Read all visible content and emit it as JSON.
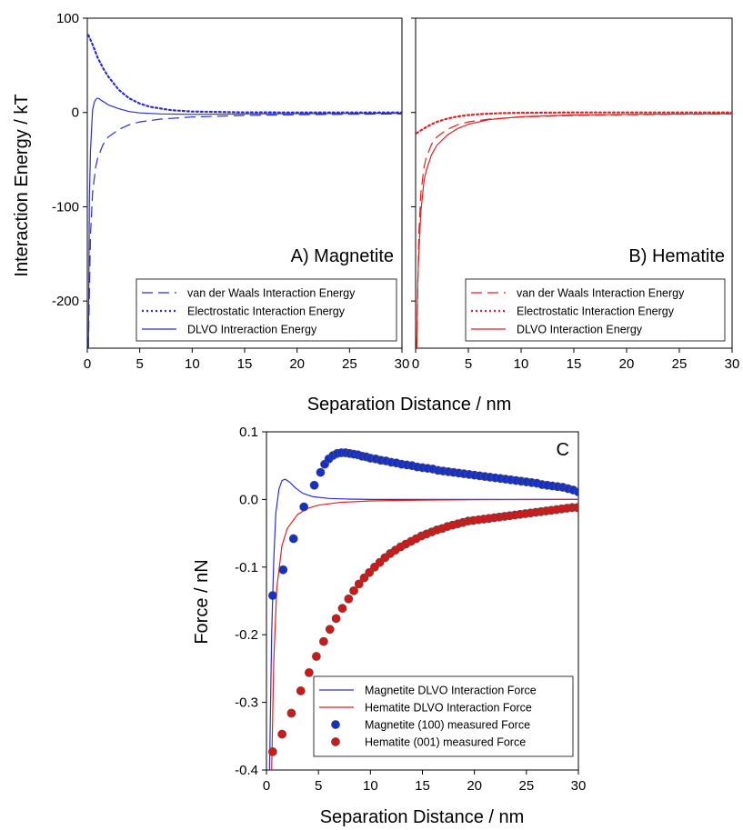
{
  "figure": {
    "top_xlabel": "Separation Distance / nm",
    "top_ylabel": "Interaction Energy / kT",
    "bottom_xlabel": "Separation Distance / nm",
    "bottom_ylabel": "Force / nN"
  },
  "colors": {
    "magnetite": "#2a2fd0",
    "hematite": "#e02222",
    "magnetite_marker": "#1530c8",
    "hematite_marker": "#d01818"
  },
  "chart_data": [
    {
      "type": "line",
      "panel_label": "A) Magnetite",
      "xlabel": "Separation Distance / nm",
      "ylabel": "Interaction Energy / kT",
      "xlim": [
        0,
        30
      ],
      "ylim": [
        -250,
        100
      ],
      "xticks": [
        "0",
        "5",
        "10",
        "15",
        "20",
        "25",
        "30"
      ],
      "yticks": [
        "100",
        "0",
        "-100",
        "-200"
      ],
      "legend_position": "bottom-right",
      "series": [
        {
          "name": "van der Waals Interaction Energy",
          "style": "dashed",
          "x": [
            0.1,
            0.3,
            0.5,
            0.8,
            1,
            1.5,
            2,
            3,
            4,
            5,
            7,
            10,
            15,
            20,
            25,
            30
          ],
          "y": [
            -250,
            -130,
            -85,
            -58,
            -48,
            -34,
            -26,
            -18,
            -13,
            -10,
            -7,
            -4.8,
            -3.2,
            -2.4,
            -1.9,
            -1.6
          ]
        },
        {
          "name": "Electrostatic Interaction Energy",
          "style": "dotted",
          "x": [
            0.1,
            0.5,
            1,
            1.5,
            2,
            3,
            4,
            5,
            6,
            8,
            10,
            15,
            20,
            25,
            30
          ],
          "y": [
            82,
            72,
            58,
            47,
            38,
            24,
            15,
            9.5,
            6,
            2.4,
            1,
            0.1,
            0,
            0,
            0
          ]
        },
        {
          "name": "DLVO Intreraction Energy",
          "style": "solid",
          "x": [
            0.1,
            0.2,
            0.3,
            0.5,
            0.7,
            0.9,
            1.1,
            1.3,
            1.6,
            2,
            3,
            4,
            5,
            7,
            10,
            15,
            20,
            25,
            30
          ],
          "y": [
            -250,
            -90,
            -40,
            3,
            12,
            15,
            15,
            13,
            11,
            8,
            4,
            1,
            -0.5,
            -1.5,
            -2,
            -1.5,
            -1.2,
            -1,
            -0.8
          ]
        }
      ]
    },
    {
      "type": "line",
      "panel_label": "B) Hematite",
      "xlabel": "Separation Distance / nm",
      "ylabel": "Interaction Energy / kT",
      "xlim": [
        0,
        30
      ],
      "ylim": [
        -250,
        100
      ],
      "xticks": [
        "0",
        "5",
        "10",
        "15",
        "20",
        "25",
        "30"
      ],
      "yticks": [],
      "legend_position": "bottom-right",
      "series": [
        {
          "name": "van der Waals Interaction Energy",
          "style": "dashed",
          "x": [
            0.1,
            0.3,
            0.5,
            0.8,
            1,
            1.5,
            2,
            3,
            4,
            5,
            7,
            10,
            15,
            20,
            25,
            30
          ],
          "y": [
            -250,
            -130,
            -85,
            -58,
            -48,
            -34,
            -26,
            -18,
            -13,
            -10,
            -7,
            -4.8,
            -3.2,
            -2.4,
            -1.9,
            -1.6
          ]
        },
        {
          "name": "Electrostatic Interaction Energy",
          "style": "dotted",
          "x": [
            0.1,
            0.5,
            1,
            1.5,
            2,
            3,
            4,
            5,
            6,
            8,
            10,
            15,
            20,
            30
          ],
          "y": [
            -22,
            -19,
            -15.5,
            -12.5,
            -10,
            -6.5,
            -4.2,
            -2.8,
            -1.8,
            -0.8,
            -0.3,
            0,
            0,
            0
          ]
        },
        {
          "name": "DLVO Interaction Energy",
          "style": "solid",
          "x": [
            0.1,
            0.2,
            0.3,
            0.5,
            0.8,
            1,
            1.5,
            2,
            3,
            4,
            5,
            7,
            10,
            15,
            20,
            25,
            30
          ],
          "y": [
            -250,
            -180,
            -150,
            -105,
            -72,
            -62,
            -45,
            -35,
            -24,
            -17,
            -12.5,
            -7.5,
            -4.5,
            -2.7,
            -2,
            -1.6,
            -1.3
          ]
        }
      ]
    },
    {
      "type": "scatter",
      "panel_label": "C",
      "xlabel": "Separation Distance / nm",
      "ylabel": "Force / nN",
      "xlim": [
        0,
        30
      ],
      "ylim": [
        -0.4,
        0.1
      ],
      "xticks": [
        "0",
        "5",
        "10",
        "15",
        "20",
        "25",
        "30"
      ],
      "yticks": [
        "0.1",
        "0.0",
        "-0.1",
        "-0.2",
        "-0.3",
        "-0.4"
      ],
      "legend_position": "bottom-right",
      "series": [
        {
          "name": "Magnetite DLVO Interaction Force",
          "kind": "line",
          "x": [
            0.3,
            0.5,
            0.7,
            0.9,
            1.2,
            1.5,
            1.8,
            2.2,
            2.8,
            3.5,
            4.5,
            6,
            8,
            10,
            15,
            20,
            30
          ],
          "y": [
            -0.4,
            -0.2,
            -0.09,
            -0.02,
            0.015,
            0.028,
            0.03,
            0.026,
            0.017,
            0.009,
            0.004,
            0.0015,
            0.0005,
            0,
            0,
            0,
            0
          ]
        },
        {
          "name": "Hematite DLVO Interaction Force",
          "kind": "line",
          "x": [
            0.5,
            0.7,
            1,
            1.5,
            2,
            3,
            4,
            5,
            7,
            10,
            15,
            20,
            30
          ],
          "y": [
            -0.4,
            -0.24,
            -0.13,
            -0.068,
            -0.043,
            -0.022,
            -0.013,
            -0.0085,
            -0.0045,
            -0.0022,
            -0.0009,
            -0.0004,
            0
          ]
        },
        {
          "name": "Magnetite (100) measured Force",
          "kind": "points",
          "x": [
            0.6,
            1.6,
            2.6,
            3.6,
            4.6,
            5.2,
            5.6,
            6.0,
            6.4,
            6.8,
            7.2,
            7.6,
            8.0,
            8.4,
            8.8,
            9.2,
            9.6,
            10.0,
            10.5,
            11.0,
            11.5,
            12.0,
            12.5,
            13.0,
            13.5,
            14.0,
            14.5,
            15.0,
            15.5,
            16.0,
            16.5,
            17.0,
            17.5,
            18.0,
            18.5,
            19.0,
            19.5,
            20.0,
            20.5,
            21.0,
            21.5,
            22.0,
            22.5,
            23.0,
            23.5,
            24.0,
            24.5,
            25.0,
            25.5,
            26.0,
            26.5,
            27.0,
            27.5,
            28.0,
            28.5,
            29.0,
            29.5,
            30.0
          ],
          "y": [
            -0.142,
            -0.104,
            -0.058,
            -0.011,
            0.021,
            0.04,
            0.052,
            0.06,
            0.065,
            0.068,
            0.069,
            0.069,
            0.068,
            0.067,
            0.066,
            0.064,
            0.063,
            0.061,
            0.06,
            0.058,
            0.057,
            0.055,
            0.054,
            0.052,
            0.051,
            0.05,
            0.048,
            0.047,
            0.046,
            0.045,
            0.043,
            0.042,
            0.041,
            0.04,
            0.039,
            0.038,
            0.037,
            0.036,
            0.035,
            0.034,
            0.033,
            0.032,
            0.031,
            0.03,
            0.029,
            0.028,
            0.027,
            0.026,
            0.025,
            0.024,
            0.022,
            0.021,
            0.02,
            0.019,
            0.018,
            0.016,
            0.014,
            0.011
          ]
        },
        {
          "name": "Hematite (001) measured Force",
          "kind": "points",
          "x": [
            0.6,
            1.5,
            2.4,
            3.3,
            4.1,
            4.8,
            5.5,
            6.1,
            6.7,
            7.3,
            7.9,
            8.4,
            8.9,
            9.4,
            9.9,
            10.4,
            10.9,
            11.4,
            11.9,
            12.4,
            12.9,
            13.4,
            13.9,
            14.4,
            14.9,
            15.4,
            15.9,
            16.4,
            16.9,
            17.4,
            17.9,
            18.4,
            18.9,
            19.4,
            19.9,
            20.4,
            20.9,
            21.4,
            21.9,
            22.4,
            22.9,
            23.4,
            23.9,
            24.4,
            24.9,
            25.4,
            25.9,
            26.4,
            26.9,
            27.4,
            27.9,
            28.4,
            28.9,
            29.4,
            29.9
          ],
          "y": [
            -0.373,
            -0.347,
            -0.316,
            -0.283,
            -0.256,
            -0.232,
            -0.21,
            -0.192,
            -0.176,
            -0.161,
            -0.147,
            -0.135,
            -0.125,
            -0.116,
            -0.108,
            -0.1,
            -0.093,
            -0.086,
            -0.08,
            -0.075,
            -0.07,
            -0.066,
            -0.062,
            -0.058,
            -0.054,
            -0.051,
            -0.048,
            -0.045,
            -0.043,
            -0.04,
            -0.038,
            -0.036,
            -0.034,
            -0.032,
            -0.031,
            -0.03,
            -0.029,
            -0.028,
            -0.027,
            -0.026,
            -0.025,
            -0.024,
            -0.023,
            -0.022,
            -0.021,
            -0.02,
            -0.019,
            -0.018,
            -0.017,
            -0.016,
            -0.015,
            -0.014,
            -0.013,
            -0.012,
            -0.012
          ]
        }
      ]
    }
  ]
}
